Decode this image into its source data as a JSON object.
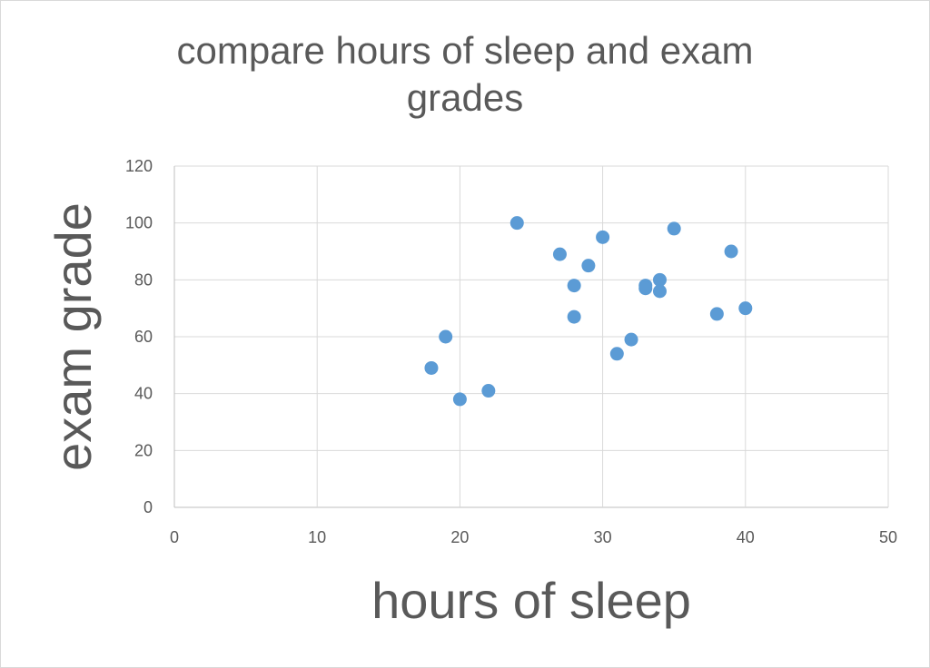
{
  "chart_data": {
    "type": "scatter",
    "title": "compare hours of sleep and exam grades",
    "xlabel": "hours of sleep",
    "ylabel": "exam grade",
    "xlim": [
      0,
      50
    ],
    "ylim": [
      0,
      120
    ],
    "xticks": [
      0,
      10,
      20,
      30,
      40,
      50
    ],
    "yticks": [
      0,
      20,
      40,
      60,
      80,
      100,
      120
    ],
    "grid": true,
    "legend": "none",
    "series": [
      {
        "color": "#5b9bd5",
        "points": [
          {
            "x": 18,
            "y": 49
          },
          {
            "x": 19,
            "y": 60
          },
          {
            "x": 20,
            "y": 38
          },
          {
            "x": 22,
            "y": 41
          },
          {
            "x": 24,
            "y": 100
          },
          {
            "x": 27,
            "y": 89
          },
          {
            "x": 28,
            "y": 78
          },
          {
            "x": 28,
            "y": 67
          },
          {
            "x": 29,
            "y": 85
          },
          {
            "x": 30,
            "y": 95
          },
          {
            "x": 31,
            "y": 54
          },
          {
            "x": 32,
            "y": 59
          },
          {
            "x": 33,
            "y": 78
          },
          {
            "x": 33,
            "y": 77
          },
          {
            "x": 34,
            "y": 80
          },
          {
            "x": 34,
            "y": 76
          },
          {
            "x": 35,
            "y": 98
          },
          {
            "x": 38,
            "y": 68
          },
          {
            "x": 39,
            "y": 90
          },
          {
            "x": 40,
            "y": 70
          }
        ]
      }
    ]
  }
}
